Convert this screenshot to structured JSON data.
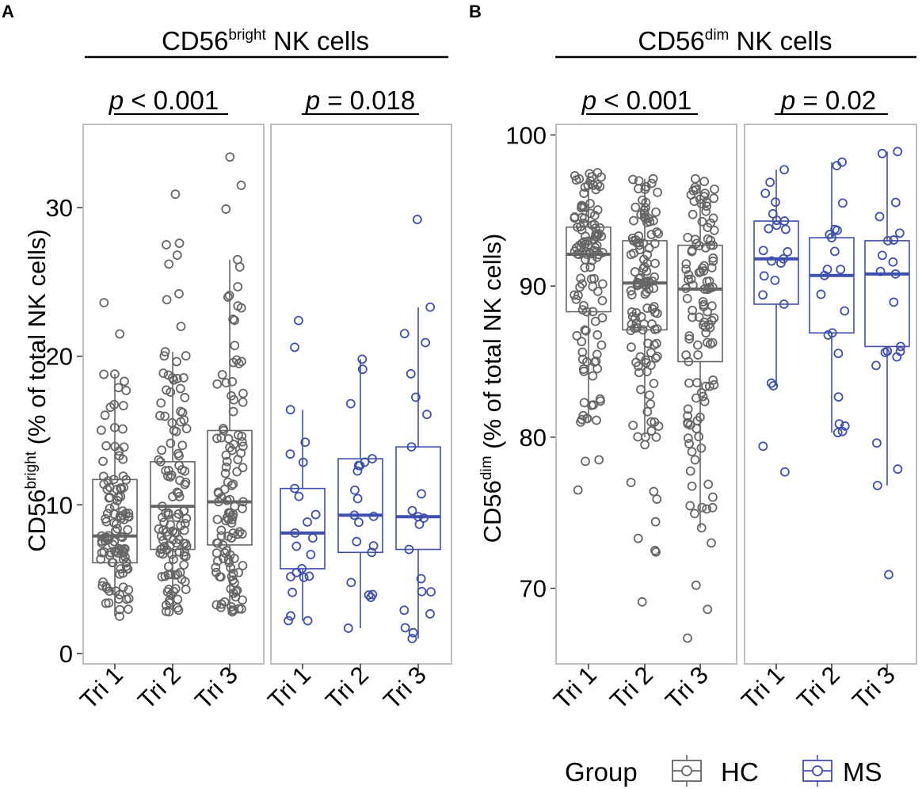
{
  "colors": {
    "HC": "#666666",
    "MS": "#3F4FAE",
    "frame": "#BDBDBD",
    "axis": "#333333"
  },
  "legend": {
    "title": "Group",
    "items": [
      {
        "label": "HC",
        "group": "HC"
      },
      {
        "label": "MS",
        "group": "MS"
      }
    ]
  },
  "chart_data": [
    {
      "type": "boxplot",
      "panel_letter": "A",
      "title_main": "CD56",
      "title_sup": "bright",
      "title_rest": " NK cells",
      "ylabel_main": "CD56",
      "ylabel_sup": "bright",
      "ylabel_rest": " (% of total NK cells)",
      "ylim": [
        -0.7,
        35.6
      ],
      "yticks": [
        0,
        10,
        20,
        30
      ],
      "categories": [
        "Tri 1",
        "Tri 2",
        "Tri 3"
      ],
      "facets": [
        {
          "group": "HC",
          "p_italic": "p",
          "p_rest": " < 0.001",
          "boxes": [
            {
              "min": 2.5,
              "q1": 6.1,
              "median": 7.9,
              "q3": 11.7,
              "max": 18.8,
              "outliers": [
                21.5,
                23.6
              ]
            },
            {
              "min": 2.8,
              "q1": 7.0,
              "median": 9.9,
              "q3": 12.9,
              "max": 20.3,
              "outliers": [
                22.0,
                23.8,
                24.2,
                26.2,
                26.8,
                27.5,
                27.6,
                30.9
              ]
            },
            {
              "min": 2.8,
              "q1": 7.3,
              "median": 10.2,
              "q3": 15.0,
              "max": 26.5,
              "outliers": [
                29.9,
                31.5,
                33.4
              ]
            }
          ]
        },
        {
          "group": "MS",
          "p_italic": "p",
          "p_rest": " = 0.018",
          "boxes": [
            {
              "min": 2.2,
              "q1": 5.7,
              "median": 8.1,
              "q3": 11.1,
              "max": 16.4,
              "outliers": [
                20.6,
                22.4
              ]
            },
            {
              "min": 1.7,
              "q1": 6.8,
              "median": 9.3,
              "q3": 13.1,
              "max": 19.8,
              "outliers": []
            },
            {
              "min": 1.0,
              "q1": 7.0,
              "median": 9.2,
              "q3": 13.9,
              "max": 23.3,
              "outliers": [
                29.2
              ]
            }
          ]
        }
      ]
    },
    {
      "type": "boxplot",
      "panel_letter": "B",
      "title_main": "CD56",
      "title_sup": "dim",
      "title_rest": " NK cells",
      "ylabel_main": "CD56",
      "ylabel_sup": "dim",
      "ylabel_rest": " (% of total NK cells)",
      "ylim": [
        65.0,
        100.7
      ],
      "yticks": [
        70,
        80,
        90,
        100
      ],
      "categories": [
        "Tri 1",
        "Tri 2",
        "Tri 3"
      ],
      "facets": [
        {
          "group": "HC",
          "p_italic": "p",
          "p_rest": " < 0.001",
          "boxes": [
            {
              "min": 81.0,
              "q1": 88.3,
              "median": 92.1,
              "q3": 93.9,
              "max": 97.5,
              "outliers": [
                76.5,
                78.4,
                78.5
              ]
            },
            {
              "min": 80.0,
              "q1": 87.1,
              "median": 90.2,
              "q3": 93.0,
              "max": 97.1,
              "outliers": [
                69.1,
                72.4,
                72.5,
                73.3,
                74.4,
                75.9,
                76.4,
                77.0,
                79.5
              ]
            },
            {
              "min": 74.0,
              "q1": 85.0,
              "median": 89.8,
              "q3": 92.7,
              "max": 97.1,
              "outliers": [
                66.7,
                68.6,
                70.2,
                73.0
              ]
            }
          ]
        },
        {
          "group": "MS",
          "p_italic": "p",
          "p_rest": " = 0.02",
          "boxes": [
            {
              "min": 83.4,
              "q1": 88.8,
              "median": 91.8,
              "q3": 94.3,
              "max": 97.7,
              "outliers": [
                77.7,
                79.4
              ]
            },
            {
              "min": 80.3,
              "q1": 86.9,
              "median": 90.7,
              "q3": 93.2,
              "max": 98.2,
              "outliers": []
            },
            {
              "min": 76.8,
              "q1": 86.0,
              "median": 90.8,
              "q3": 93.0,
              "max": 98.9,
              "outliers": [
                70.9
              ]
            }
          ]
        }
      ]
    }
  ]
}
